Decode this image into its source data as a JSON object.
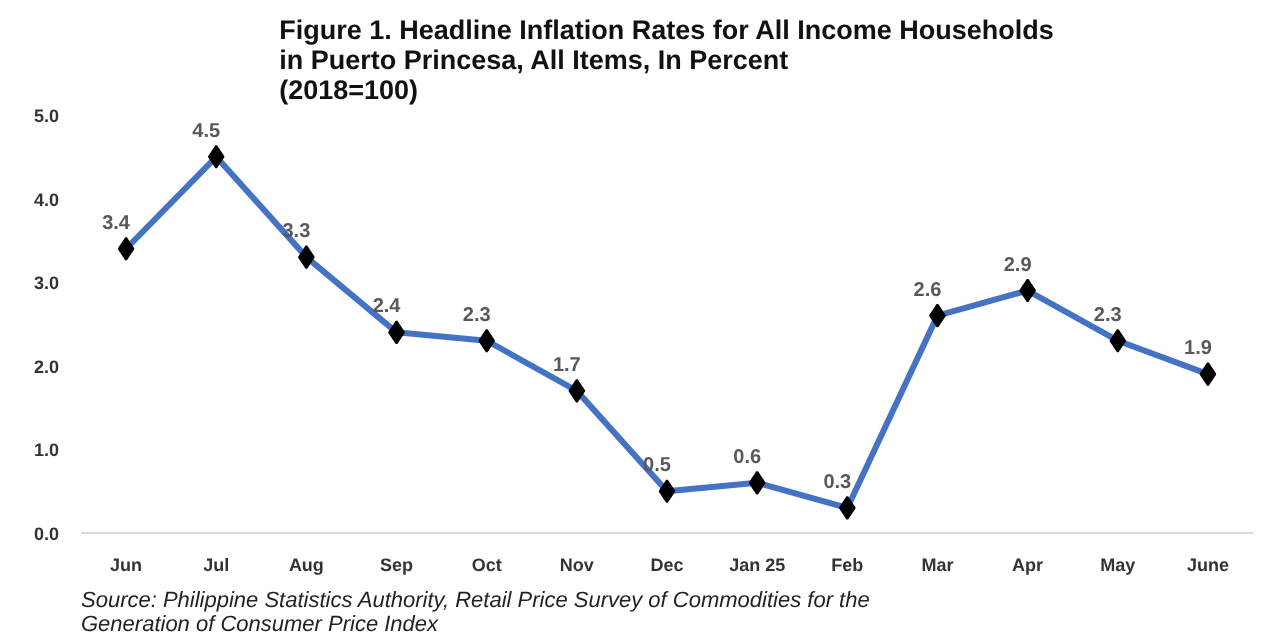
{
  "chart_data": {
    "type": "line",
    "title": "Figure 1. Headline Inflation Rates for All Income Households\nin Puerto Princesa, All Items, In Percent\n(2018=100)",
    "categories": [
      "Jun",
      "Jul",
      "Aug",
      "Sep",
      "Oct",
      "Nov",
      "Dec",
      "Jan 25",
      "Feb",
      "Mar",
      "Apr",
      "May",
      "June"
    ],
    "series": [
      {
        "color": "#4472c4",
        "values": [
          3.4,
          4.5,
          3.3,
          2.4,
          2.3,
          1.7,
          0.5,
          0.6,
          0.3,
          2.6,
          2.9,
          2.3,
          1.9
        ]
      }
    ],
    "ylim": [
      0,
      5
    ],
    "yticks": [
      {
        "value": 0,
        "label": "0.0"
      },
      {
        "value": 1,
        "label": "1.0"
      },
      {
        "value": 2,
        "label": "2.0"
      },
      {
        "value": 3,
        "label": "3.0"
      },
      {
        "value": 4,
        "label": "4.0"
      },
      {
        "value": 5,
        "label": "5.0"
      }
    ],
    "marker": "diamond",
    "data_labels": true,
    "grid": false,
    "annotations": [
      "Source: Philippine Statistics Authority, Retail Price Survey of Commodities for the Generation of Consumer Price Index"
    ]
  }
}
